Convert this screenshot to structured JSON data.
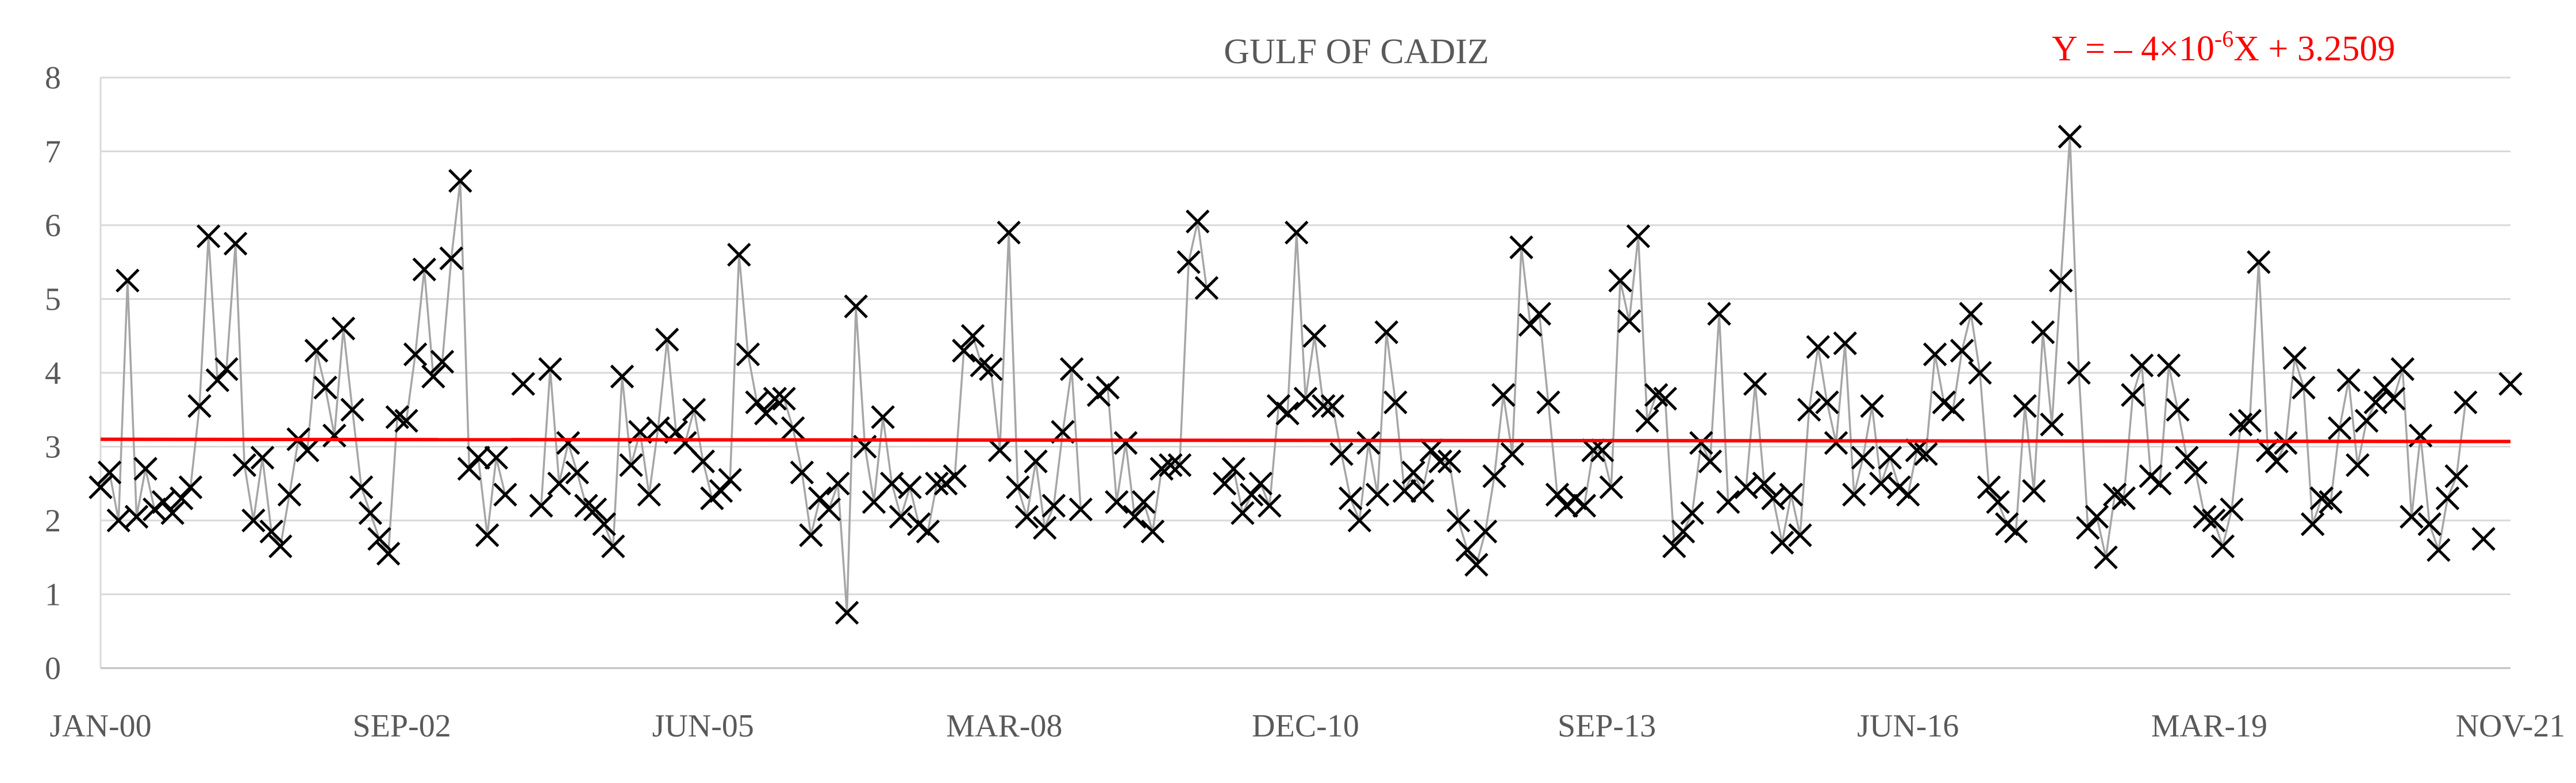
{
  "chart_data": {
    "type": "line",
    "title": "GULF OF CADIZ",
    "annotation": {
      "prefix": "Y = – 4×10",
      "exponent": "-6",
      "suffix": "X + 3.2509"
    },
    "xlabel": "",
    "ylabel": "",
    "ylim": [
      0,
      8
    ],
    "yticks": [
      0,
      1,
      2,
      3,
      4,
      5,
      6,
      7,
      8
    ],
    "xticks": [
      "JAN-00",
      "SEP-02",
      "JUN-05",
      "MAR-08",
      "DEC-10",
      "SEP-13",
      "JUN-16",
      "MAR-19",
      "NOV-21"
    ],
    "x_start": "2000-01",
    "x_end": "2021-11",
    "grid": true,
    "legend": "none",
    "marker": "x",
    "colors": {
      "series": "#a6a6a6",
      "marker": "#000000",
      "trend": "#ff0000",
      "grid": "#d9d9d9",
      "axis": "#bfbfbf",
      "text": "#595959"
    },
    "trendline": {
      "slope_per_day": -4e-06,
      "intercept": 3.2509,
      "start_value": 3.1,
      "end_value": 3.07
    },
    "series": [
      {
        "values": [
          2.45,
          2.65,
          2.0,
          5.25,
          2.05,
          2.7,
          2.15,
          2.25,
          2.1,
          2.3,
          2.45,
          3.55,
          5.85,
          3.9,
          4.05,
          5.75,
          2.75,
          2.0,
          2.85,
          1.85,
          1.65,
          2.35,
          3.1,
          2.95,
          4.3,
          3.8,
          3.15,
          4.6,
          3.5,
          2.45,
          2.1,
          1.75,
          1.55,
          3.4,
          3.35,
          4.25,
          5.4,
          3.95,
          4.15,
          5.55,
          6.6,
          2.7,
          2.85,
          1.8,
          2.85,
          2.35,
          null,
          3.85,
          null,
          2.2,
          4.05,
          2.5,
          3.05,
          2.65,
          2.2,
          2.15,
          1.95,
          1.65,
          3.95,
          2.75,
          3.2,
          2.35,
          3.25,
          4.45,
          3.2,
          3.05,
          3.5,
          2.8,
          2.3,
          2.4,
          2.55,
          5.6,
          4.25,
          3.6,
          3.45,
          3.65,
          3.65,
          3.25,
          2.65,
          1.8,
          2.3,
          2.15,
          2.5,
          0.75,
          4.9,
          3.0,
          2.25,
          3.4,
          2.5,
          2.05,
          2.45,
          1.95,
          1.85,
          2.5,
          2.5,
          2.6,
          4.3,
          4.5,
          4.1,
          4.05,
          2.95,
          5.9,
          2.45,
          2.05,
          2.8,
          1.9,
          2.2,
          3.2,
          4.05,
          2.15,
          null,
          3.7,
          3.8,
          2.25,
          3.05,
          2.05,
          2.25,
          1.85,
          2.7,
          2.75,
          2.75,
          5.5,
          6.05,
          5.15,
          null,
          2.5,
          2.7,
          2.1,
          2.35,
          2.5,
          2.2,
          3.55,
          3.45,
          5.9,
          3.65,
          4.5,
          3.55,
          3.55,
          2.9,
          2.3,
          2.0,
          3.05,
          2.35,
          4.55,
          3.6,
          2.4,
          2.65,
          2.4,
          2.95,
          2.8,
          2.8,
          2.0,
          1.6,
          1.4,
          1.85,
          2.6,
          3.7,
          2.9,
          5.7,
          4.65,
          4.8,
          3.6,
          2.35,
          2.2,
          2.3,
          2.2,
          2.95,
          2.95,
          2.45,
          5.25,
          4.7,
          5.85,
          3.35,
          3.7,
          3.65,
          1.65,
          1.85,
          2.1,
          3.05,
          2.8,
          4.8,
          2.25,
          null,
          2.45,
          3.85,
          2.5,
          2.3,
          1.7,
          2.35,
          1.8,
          3.5,
          4.35,
          3.6,
          3.05,
          4.4,
          2.35,
          2.85,
          3.55,
          2.5,
          2.85,
          2.45,
          2.35,
          2.95,
          2.9,
          4.25,
          3.6,
          3.5,
          4.3,
          4.8,
          4.0,
          2.45,
          2.25,
          1.95,
          1.85,
          3.55,
          2.4,
          4.55,
          3.3,
          5.25,
          7.2,
          4.0,
          1.9,
          2.05,
          1.5,
          2.35,
          2.3,
          3.7,
          4.1,
          2.6,
          2.5,
          4.1,
          3.5,
          2.85,
          2.65,
          2.05,
          2.0,
          1.65,
          2.15,
          3.3,
          3.35,
          5.5,
          2.95,
          2.8,
          3.05,
          4.2,
          3.8,
          1.95,
          2.3,
          2.25,
          3.25,
          3.9,
          2.75,
          3.35,
          3.6,
          3.8,
          3.65,
          4.05,
          2.05,
          3.15,
          1.95,
          1.6,
          2.3,
          2.6,
          3.6,
          null,
          1.75,
          null,
          null,
          3.85
        ]
      }
    ]
  }
}
